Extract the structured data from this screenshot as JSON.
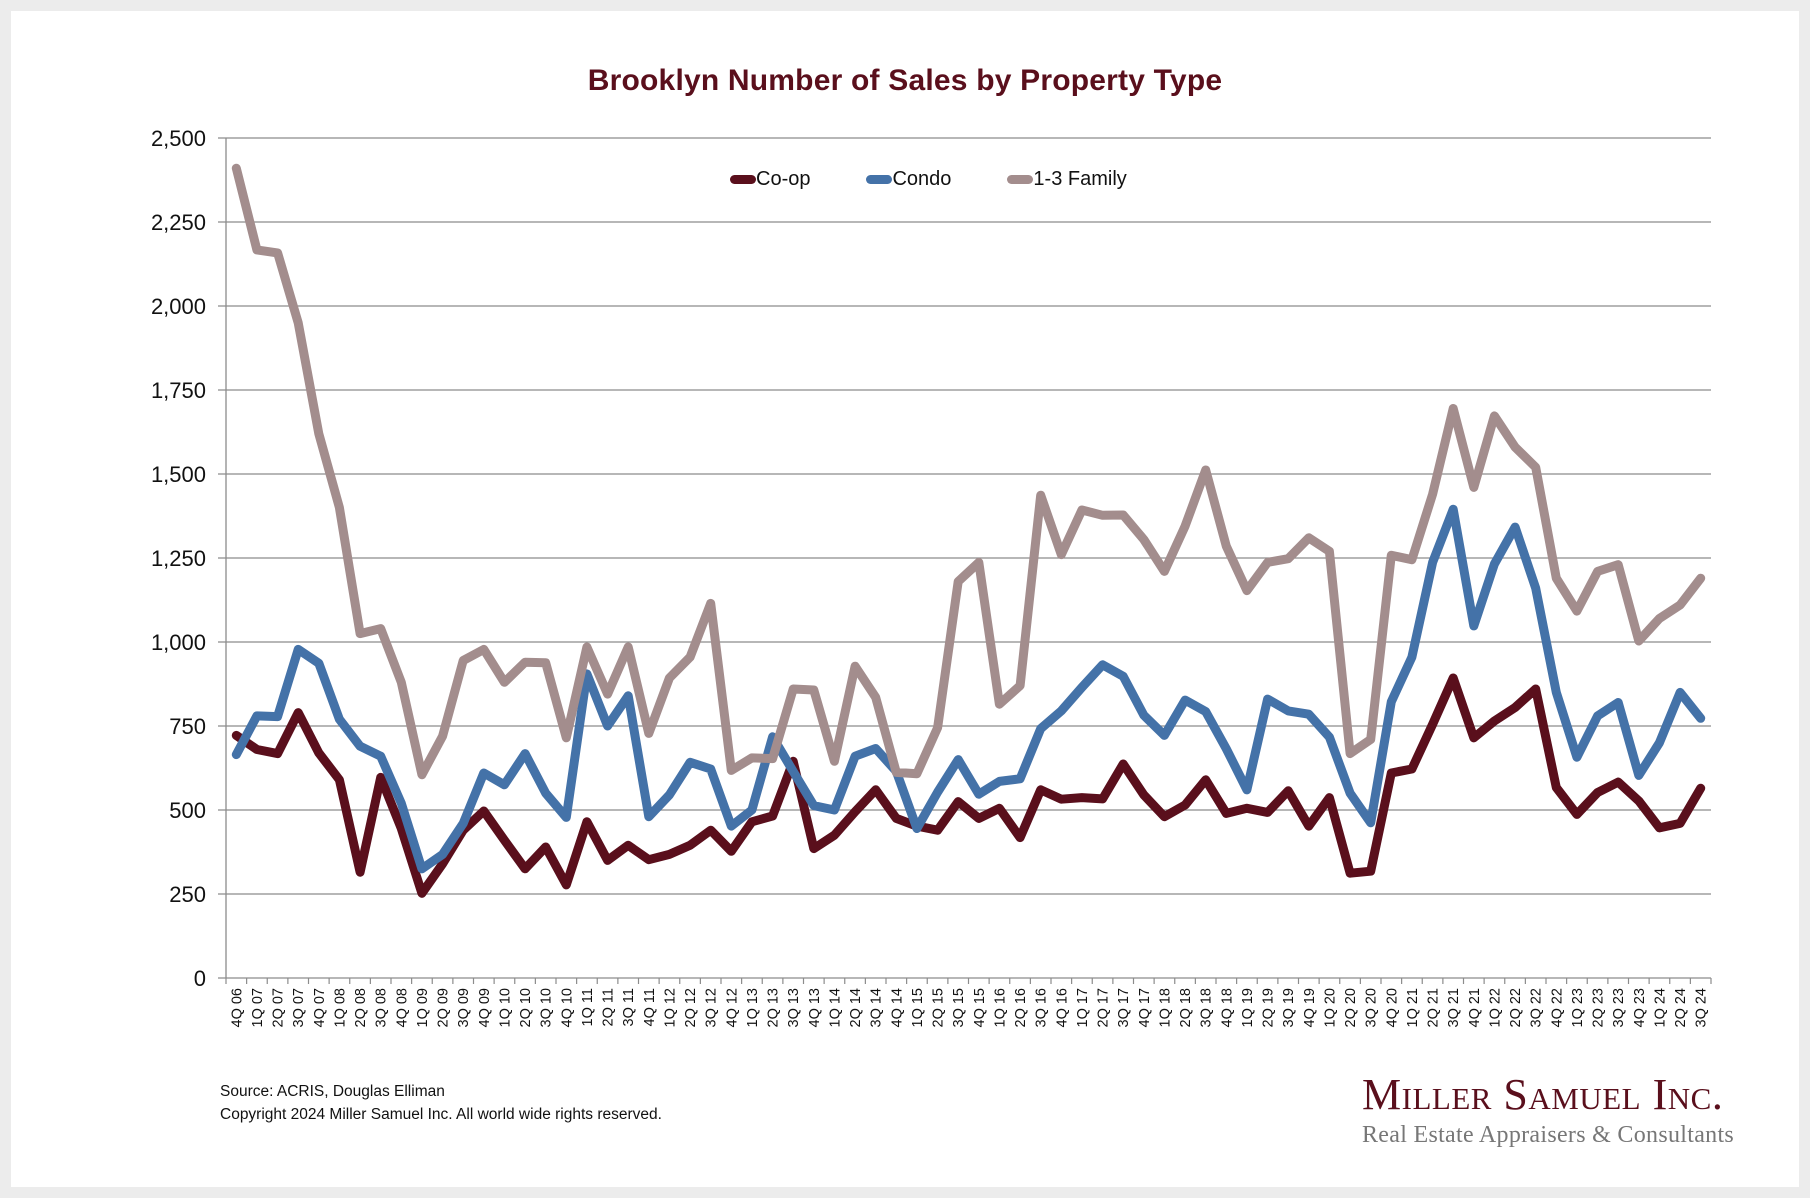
{
  "footer": {
    "source": "Source: ACRIS, Douglas Elliman",
    "copyright": "Copyright 2024 Miller Samuel Inc.  All world wide rights reserved."
  },
  "logo": {
    "name": "Miller Samuel Inc.",
    "tagline": "Real Estate Appraisers & Consultants"
  },
  "chart_data": {
    "type": "line",
    "title": "Brooklyn Number of Sales by Property Type",
    "xlabel": "",
    "ylabel": "",
    "ylim": [
      0,
      2500
    ],
    "yticks": [
      0,
      250,
      500,
      750,
      1000,
      1250,
      1500,
      1750,
      2000,
      2250,
      2500
    ],
    "ytick_labels": [
      "0",
      "250",
      "500",
      "750",
      "1,000",
      "1,250",
      "1,500",
      "1,750",
      "2,000",
      "2,250",
      "2,500"
    ],
    "grid": "horizontal",
    "legend_position": "top-center",
    "categories": [
      "4Q 06",
      "1Q 07",
      "2Q 07",
      "3Q 07",
      "4Q 07",
      "1Q 08",
      "2Q 08",
      "3Q 08",
      "4Q 08",
      "1Q 09",
      "2Q 09",
      "3Q 09",
      "4Q 09",
      "1Q 10",
      "2Q 10",
      "3Q 10",
      "4Q 10",
      "1Q 11",
      "2Q 11",
      "3Q 11",
      "4Q 11",
      "1Q 12",
      "2Q 12",
      "3Q 12",
      "4Q 12",
      "1Q 13",
      "2Q 13",
      "3Q 13",
      "4Q 13",
      "1Q 14",
      "2Q 14",
      "3Q 14",
      "4Q 14",
      "1Q 15",
      "2Q 15",
      "3Q 15",
      "4Q 15",
      "1Q 16",
      "2Q 16",
      "3Q 16",
      "4Q 16",
      "1Q 17",
      "2Q 17",
      "3Q 17",
      "4Q 17",
      "1Q 18",
      "2Q 18",
      "3Q 18",
      "4Q 18",
      "1Q 19",
      "2Q 19",
      "3Q 19",
      "4Q 19",
      "1Q 20",
      "2Q 20",
      "3Q 20",
      "4Q 20",
      "1Q 21",
      "2Q 21",
      "3Q 21",
      "4Q 21",
      "1Q 22",
      "2Q 22",
      "3Q 22",
      "4Q 22",
      "1Q 23",
      "2Q 23",
      "3Q 23",
      "4Q 23",
      "1Q 24",
      "2Q 24",
      "3Q 24"
    ],
    "series": [
      {
        "name": "Co-op",
        "color": "#5a0f1c",
        "values": [
          722,
          680,
          668,
          790,
          670,
          590,
          315,
          597,
          445,
          252,
          340,
          440,
          497,
          410,
          325,
          390,
          277,
          465,
          350,
          395,
          352,
          368,
          395,
          440,
          377,
          465,
          482,
          645,
          385,
          425,
          495,
          560,
          475,
          452,
          440,
          525,
          475,
          505,
          418,
          560,
          532,
          537,
          533,
          637,
          545,
          480,
          515,
          590,
          490,
          505,
          493,
          557,
          452,
          537,
          312,
          318,
          610,
          622,
          755,
          893,
          715,
          765,
          805,
          860,
          567,
          487,
          552,
          583,
          527,
          447,
          460,
          565
        ]
      },
      {
        "name": "Condo",
        "color": "#4472a8",
        "values": [
          665,
          780,
          778,
          978,
          937,
          770,
          690,
          660,
          520,
          325,
          368,
          460,
          610,
          575,
          668,
          550,
          478,
          905,
          750,
          840,
          480,
          545,
          642,
          622,
          452,
          500,
          718,
          615,
          513,
          500,
          660,
          683,
          615,
          445,
          553,
          650,
          547,
          585,
          593,
          742,
          795,
          865,
          932,
          898,
          782,
          722,
          827,
          793,
          682,
          560,
          830,
          795,
          785,
          717,
          550,
          462,
          822,
          955,
          1237,
          1395,
          1048,
          1232,
          1342,
          1160,
          850,
          657,
          780,
          820,
          603,
          700,
          850,
          773
        ]
      },
      {
        "name": "1-3 Family",
        "color": "#a38d8d",
        "values": [
          2410,
          2167,
          2158,
          1950,
          1620,
          1400,
          1025,
          1040,
          880,
          605,
          720,
          945,
          978,
          880,
          940,
          938,
          715,
          985,
          845,
          985,
          728,
          893,
          955,
          1115,
          618,
          655,
          653,
          860,
          857,
          645,
          928,
          835,
          612,
          608,
          745,
          1180,
          1237,
          815,
          870,
          1437,
          1260,
          1393,
          1377,
          1378,
          1305,
          1210,
          1345,
          1512,
          1285,
          1153,
          1237,
          1248,
          1310,
          1270,
          668,
          710,
          1258,
          1245,
          1440,
          1695,
          1460,
          1673,
          1580,
          1520,
          1190,
          1092,
          1210,
          1230,
          1003,
          1070,
          1110,
          1190
        ]
      }
    ]
  }
}
